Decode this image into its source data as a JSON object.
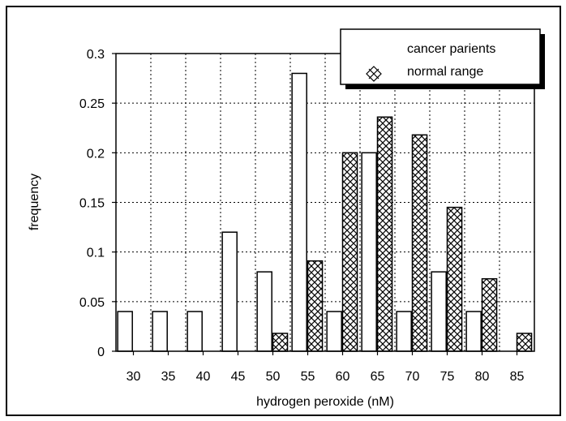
{
  "chart_data": {
    "type": "bar",
    "title": "",
    "xlabel": "hydrogen peroxide (nM)",
    "ylabel": "frequency",
    "categories": [
      "30",
      "35",
      "40",
      "45",
      "50",
      "55",
      "60",
      "65",
      "70",
      "75",
      "80",
      "85"
    ],
    "ylim": [
      0,
      0.3
    ],
    "yticks": [
      "0",
      "0.05",
      "0.1",
      "0.15",
      "0.2",
      "0.25",
      "0.3"
    ],
    "grid": true,
    "legend_position": "top-right",
    "series": [
      {
        "name": "cancer parients",
        "fill": "#ffffff",
        "pattern": "none",
        "values": [
          0.04,
          0.04,
          0.04,
          0.12,
          0.08,
          0.28,
          0.04,
          0.2,
          0.04,
          0.08,
          0.04,
          0
        ]
      },
      {
        "name": "normal range",
        "fill": "#ffffff",
        "pattern": "crosshatch",
        "values": [
          0,
          0,
          0,
          0,
          0.018,
          0.091,
          0.2,
          0.236,
          0.218,
          0.145,
          0.073,
          0.018
        ]
      }
    ]
  }
}
